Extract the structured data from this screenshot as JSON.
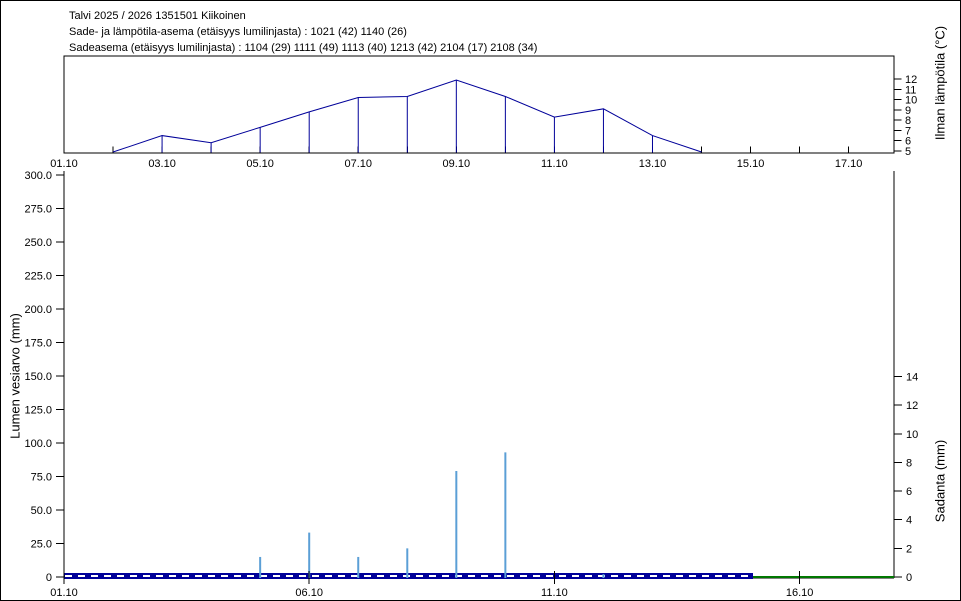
{
  "header": {
    "line1": "Talvi 2025 / 2026 1351501 Kiikoinen",
    "line2": "Sade- ja lämpötila-asema (etäisyys lumilinjasta) :  1021 (42) 1140 (26)",
    "line3": "Sadeasema (etäisyys lumilinjasta) :  1104 (29) 1111 (49) 1113 (40) 1213 (42) 2104 (17) 2108 (34)"
  },
  "colors": {
    "background": "#FFFFFF",
    "axis_black": "#000000",
    "line_navy": "#000099",
    "bar_blue": "#5B9FD6",
    "green": "#007700",
    "dash_white": "#FFFFFF"
  },
  "chart_data": [
    {
      "type": "line",
      "title": "",
      "ylabel": "Ilman lämpötila (°C)",
      "xlim_days": [
        1,
        17.93
      ],
      "ylim": [
        4.8,
        14.2
      ],
      "grid": false,
      "x_ticks": {
        "days": [
          1,
          3,
          5,
          7,
          9,
          11,
          13,
          15,
          17
        ],
        "labels": [
          "01.10",
          "03.10",
          "05.10",
          "07.10",
          "09.10",
          "11.10",
          "13.10",
          "15.10",
          "17.10"
        ]
      },
      "x_minor_tick_days": [
        1,
        2,
        3,
        4,
        5,
        6,
        7,
        8,
        9,
        10,
        11,
        12,
        13,
        14,
        15,
        16,
        17
      ],
      "y_ticks": {
        "values": [
          5,
          6,
          7,
          8,
          9,
          10,
          11,
          12
        ],
        "labels": [
          "5",
          "6",
          "7",
          "8",
          "9",
          "10",
          "11",
          "12"
        ],
        "side": "right"
      },
      "series": [
        {
          "name": "Ilman lämpötila",
          "color_key": "line_navy",
          "drop_lines": true,
          "x_days": [
            2,
            3,
            4,
            5,
            6,
            7,
            8,
            9,
            10,
            11,
            12,
            13,
            14
          ],
          "values": [
            4.9,
            6.5,
            5.8,
            7.3,
            8.8,
            10.2,
            10.3,
            11.9,
            10.3,
            8.3,
            9.1,
            6.5,
            4.9
          ]
        }
      ]
    },
    {
      "type": "bar",
      "title": "",
      "ylabel_left": "Lumen vesiarvo (mm)",
      "ylabel_right": "Sadanta (mm)",
      "xlim_days": [
        1,
        17.93
      ],
      "grid": false,
      "x_ticks": {
        "days": [
          1,
          6,
          11,
          16
        ],
        "labels": [
          "01.10",
          "06.10",
          "11.10",
          "16.10"
        ]
      },
      "y_left": {
        "lim": [
          0,
          303
        ],
        "values": [
          0,
          25,
          50,
          75,
          100,
          125,
          150,
          175,
          200,
          225,
          250,
          275,
          300
        ],
        "labels": [
          "0",
          "25.0",
          "50.0",
          "75.0",
          "100.0",
          "125.0",
          "150.0",
          "175.0",
          "200.0",
          "225.0",
          "250.0",
          "275.0",
          "300.0"
        ]
      },
      "y_right": {
        "lim": [
          0,
          28.3
        ],
        "values": [
          0,
          2,
          4,
          6,
          8,
          10,
          12,
          14
        ],
        "labels": [
          "0",
          "2",
          "4",
          "6",
          "8",
          "10",
          "12",
          "14"
        ]
      },
      "bars": {
        "name": "Sadanta",
        "axis": "right",
        "color_key": "bar_blue",
        "x_days": [
          5,
          6,
          7,
          8,
          9,
          10,
          12
        ],
        "values": [
          1.4,
          3.1,
          1.4,
          2.0,
          7.4,
          8.7,
          0.2
        ]
      },
      "lines": [
        {
          "name": "Lumen vesiarvo",
          "axis": "left",
          "color_key": "line_navy",
          "style": "thick_white_dash",
          "x_days": [
            1,
            15.05
          ],
          "values": [
            0,
            0
          ]
        },
        {
          "name": "Zero line (green)",
          "axis": "left",
          "color_key": "green",
          "style": "solid",
          "x_days": [
            15.05,
            17.93
          ],
          "values": [
            0,
            0
          ]
        }
      ]
    }
  ]
}
